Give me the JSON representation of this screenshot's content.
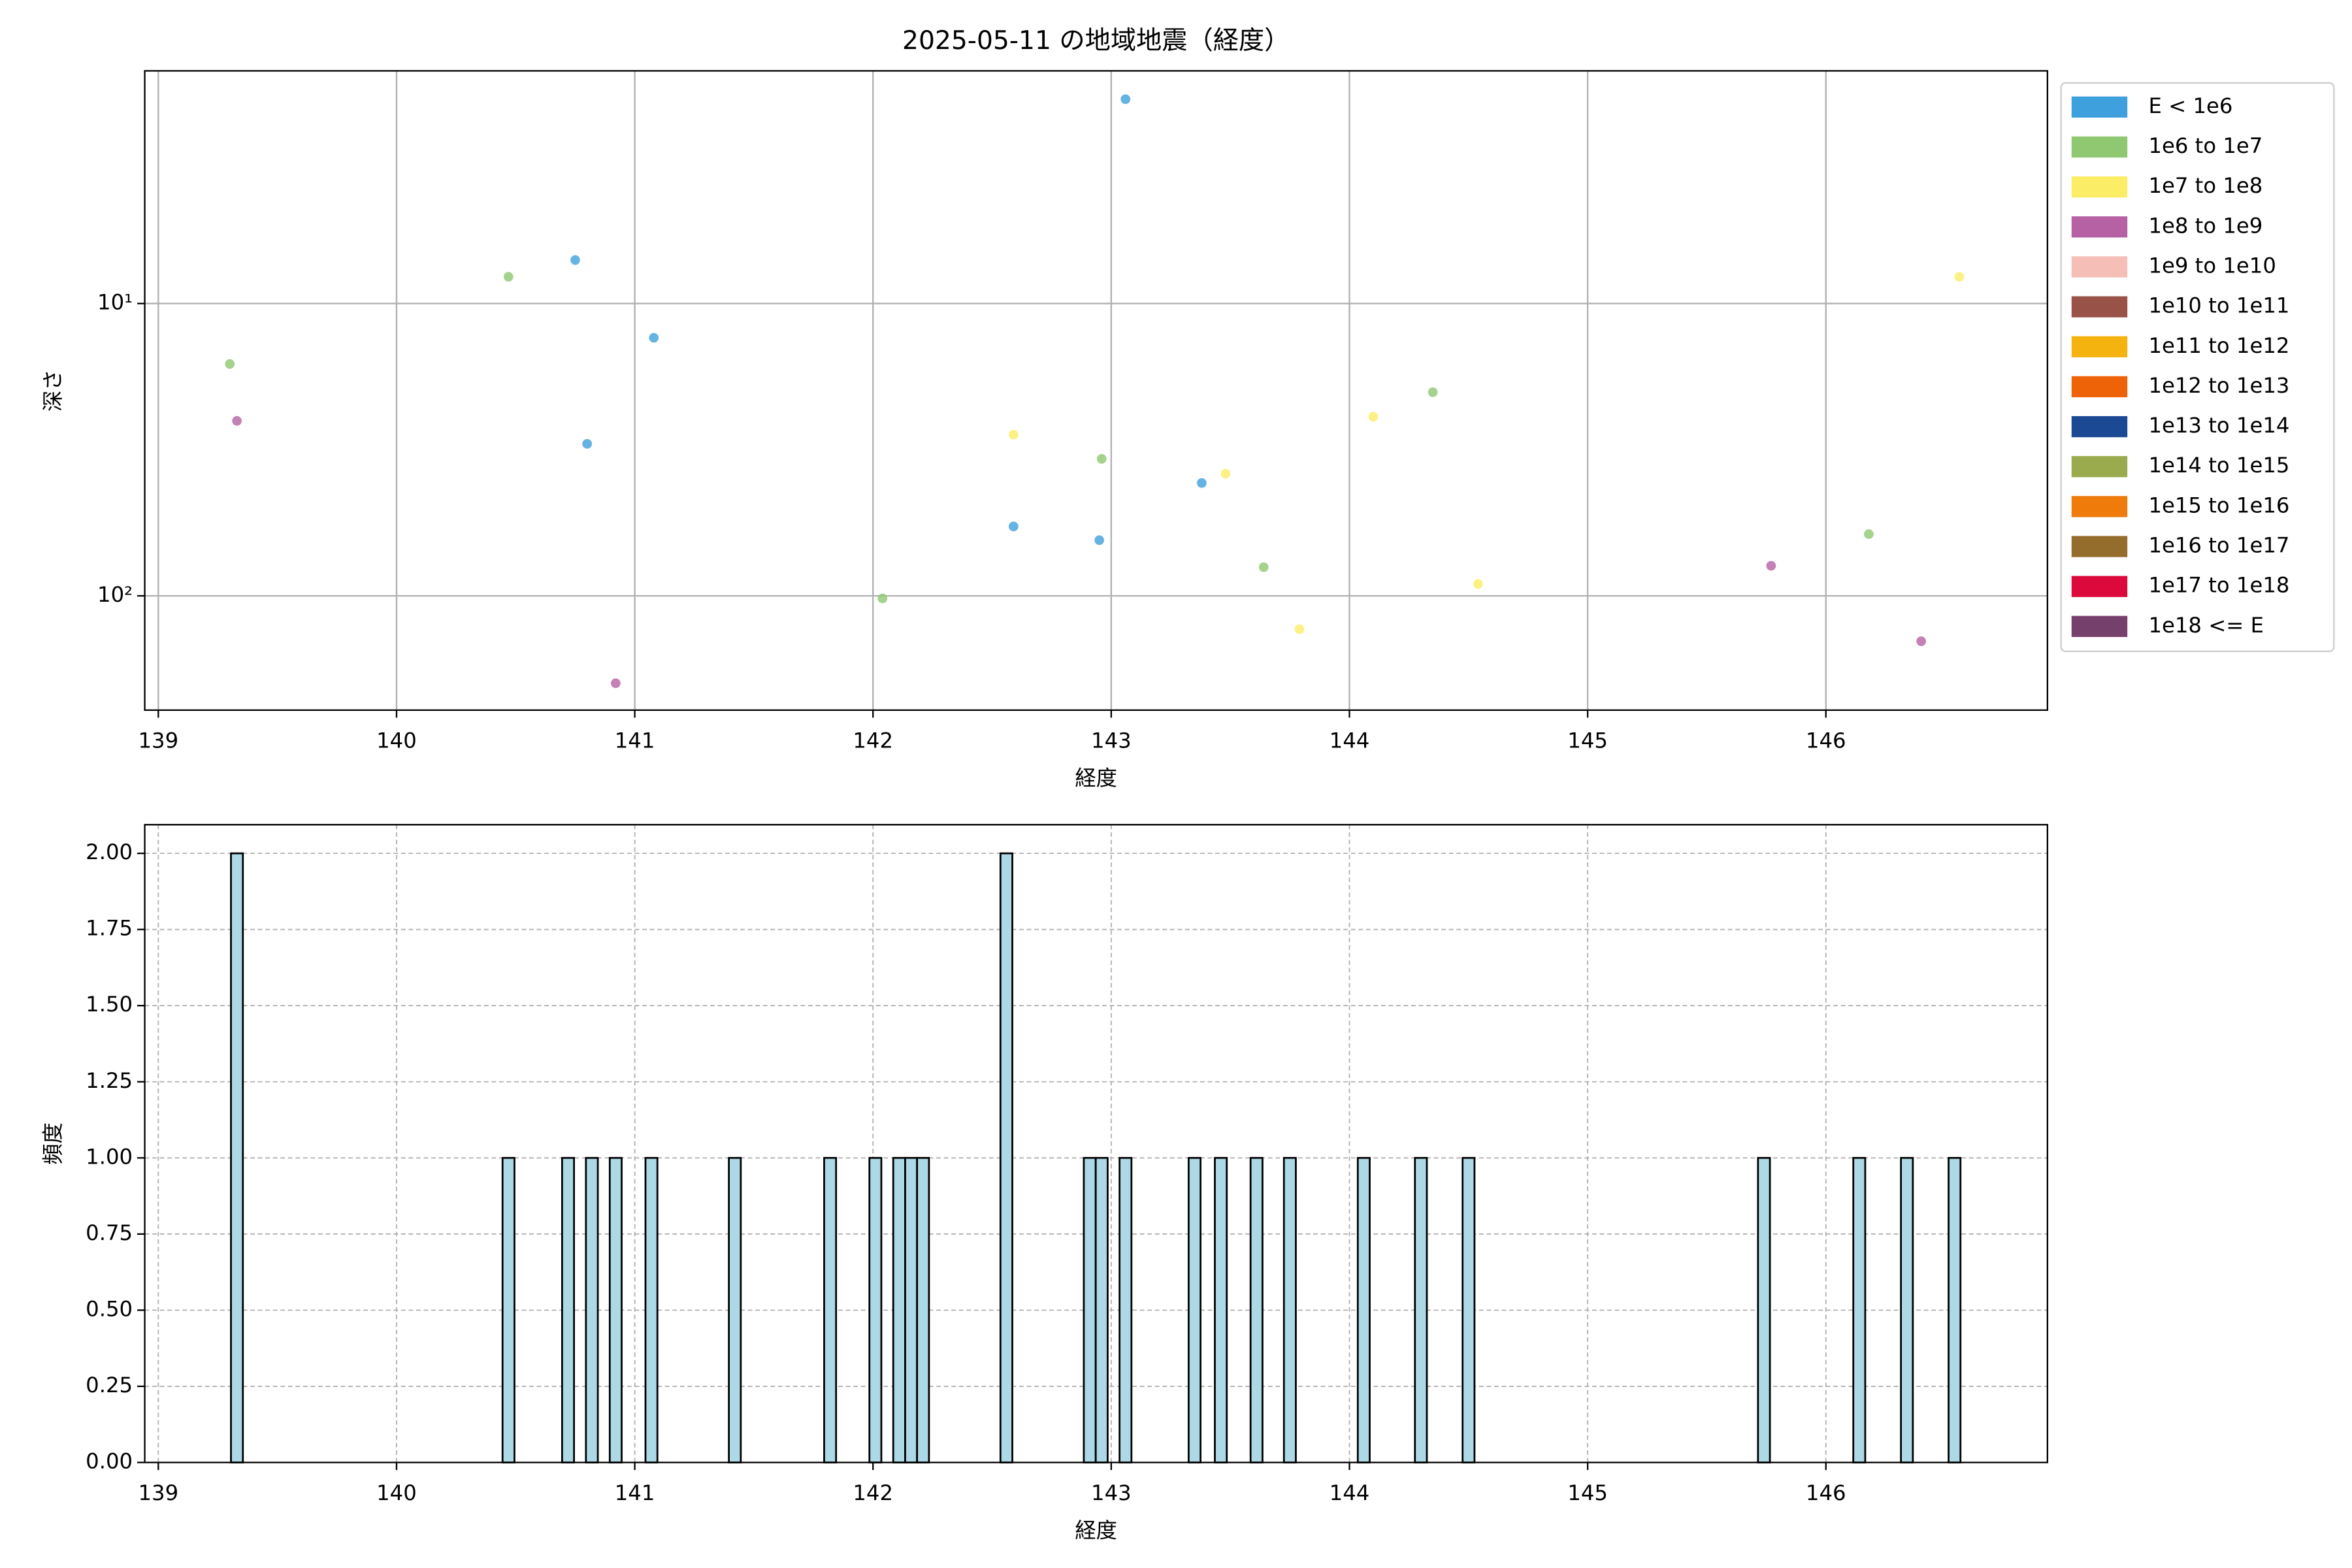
{
  "chart_data": [
    {
      "type": "scatter",
      "title": "2025-05-11 の地域地震（経度）",
      "x_label": "経度",
      "y_label": "深さ",
      "xlim": [
        138.943,
        146.93
      ],
      "xticks": [
        139,
        140,
        141,
        142,
        143,
        144,
        145,
        146
      ],
      "ylim": [
        246,
        1.6
      ],
      "y_log": true,
      "yticks": [
        {
          "value": 10,
          "label": "10¹"
        },
        {
          "value": 100,
          "label": "10²"
        }
      ],
      "grid": true,
      "legend": "outside-upper-right",
      "series": [
        {
          "name": "E < 1e6",
          "color": "#3ea0dc",
          "x": [
            143.06,
            140.75,
            141.08,
            140.8,
            142.59,
            142.95,
            143.38
          ],
          "values": [
            2.0,
            7.1,
            13.1,
            30.2,
            57.9,
            64.5,
            41.1
          ]
        },
        {
          "name": "1e6 to 1e7",
          "color": "#8fc870",
          "x": [
            139.3,
            140.47,
            142.04,
            142.96,
            143.64,
            144.35,
            146.18
          ],
          "values": [
            16.1,
            8.1,
            102,
            34.0,
            79.8,
            20.1,
            61.5
          ]
        },
        {
          "name": "1e7 to 1e8",
          "color": "#fbee66",
          "x": [
            142.59,
            143.48,
            143.79,
            144.1,
            144.54,
            146.56
          ],
          "values": [
            28.1,
            38.2,
            130,
            24.4,
            91,
            8.1
          ]
        },
        {
          "name": "1e8 to 1e9",
          "color": "#b561a4",
          "x": [
            139.33,
            140.92,
            145.77,
            146.4
          ],
          "values": [
            25.2,
            199,
            78.9,
            143
          ]
        },
        {
          "name": "1e9 to 1e10",
          "color": "#f5bfb7",
          "x": [],
          "values": []
        },
        {
          "name": "1e10 to 1e11",
          "color": "#985248",
          "x": [],
          "values": []
        },
        {
          "name": "1e11 to 1e12",
          "color": "#f5b30f",
          "x": [],
          "values": []
        },
        {
          "name": "1e12 to 1e13",
          "color": "#ee6308",
          "x": [],
          "values": []
        },
        {
          "name": "1e13 to 1e14",
          "color": "#1c4994",
          "x": [],
          "values": []
        },
        {
          "name": "1e14 to 1e15",
          "color": "#9aab4d",
          "x": [],
          "values": []
        },
        {
          "name": "1e15 to 1e16",
          "color": "#ef7b0a",
          "x": [],
          "values": []
        },
        {
          "name": "1e16 to 1e17",
          "color": "#946c2c",
          "x": [],
          "values": []
        },
        {
          "name": "1e17 to 1e18",
          "color": "#dc0a3c",
          "x": [],
          "values": []
        },
        {
          "name": "1e18 <= E",
          "color": "#76406c",
          "x": [],
          "values": []
        }
      ]
    },
    {
      "type": "bar",
      "x_label": "経度",
      "y_label": "頻度",
      "color": "#add8e6",
      "edge_color": "#000000",
      "xlim": [
        138.943,
        146.93
      ],
      "xticks": [
        139,
        140,
        141,
        142,
        143,
        144,
        145,
        146
      ],
      "ylim": [
        0,
        2.094
      ],
      "yticks": [
        {
          "value": 0,
          "label": "0.00"
        },
        {
          "value": 0.25,
          "label": "0.25"
        },
        {
          "value": 0.5,
          "label": "0.50"
        },
        {
          "value": 0.75,
          "label": "0.75"
        },
        {
          "value": 1,
          "label": "1.00"
        },
        {
          "value": 1.25,
          "label": "1.25"
        },
        {
          "value": 1.5,
          "label": "1.50"
        },
        {
          "value": 1.75,
          "label": "1.75"
        },
        {
          "value": 2,
          "label": "2.00"
        }
      ],
      "grid": true,
      "x": [
        139.33,
        140.47,
        140.72,
        140.82,
        140.92,
        141.07,
        141.42,
        141.82,
        142.01,
        142.11,
        142.16,
        142.21,
        142.56,
        142.91,
        142.96,
        143.06,
        143.35,
        143.46,
        143.61,
        143.75,
        144.06,
        144.3,
        144.5,
        145.74,
        146.14,
        146.34,
        146.54
      ],
      "values": [
        2,
        1,
        1,
        1,
        1,
        1,
        1,
        1,
        1,
        1,
        1,
        1,
        2,
        1,
        1,
        1,
        1,
        1,
        1,
        1,
        1,
        1,
        1,
        1,
        1,
        1,
        1
      ]
    }
  ]
}
